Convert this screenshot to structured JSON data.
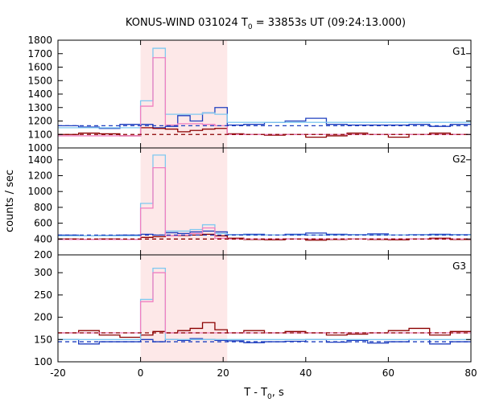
{
  "figure": {
    "title_main": "KONUS-WIND 031024 T",
    "title_sub": "0",
    "title_rest": " = 33853s UT (09:24:13.000)",
    "xlabel_main": "T - T",
    "xlabel_sub": "0",
    "xlabel_rest": ", s",
    "ylabel": "counts / sec"
  },
  "chart_data": [
    {
      "type": "line",
      "panel": "G1",
      "title": "G1",
      "xlim": [
        -20,
        80
      ],
      "ylim": [
        1000,
        1800
      ],
      "xticks": [
        -20,
        0,
        20,
        40,
        60,
        80
      ],
      "yticks": [
        1000,
        1100,
        1200,
        1300,
        1400,
        1500,
        1600,
        1700,
        1800
      ],
      "highlight_interval": [
        0,
        21
      ],
      "highlight_color": "#fde8e8",
      "series": [
        {
          "color": "#1f3fbf",
          "style": "step",
          "x": [
            -20,
            -15,
            -10,
            -5,
            0,
            3,
            6,
            9,
            12,
            15,
            18,
            21,
            25,
            30,
            35,
            40,
            45,
            50,
            55,
            60,
            65,
            70,
            75,
            80
          ],
          "values": [
            1165,
            1155,
            1145,
            1175,
            1175,
            1150,
            1160,
            1240,
            1200,
            1260,
            1300,
            1170,
            1175,
            1190,
            1200,
            1220,
            1175,
            1170,
            1170,
            1170,
            1175,
            1160,
            1175,
            1175
          ]
        },
        {
          "color": "#8b0000",
          "style": "step",
          "x": [
            -20,
            -15,
            -10,
            -5,
            0,
            3,
            6,
            9,
            12,
            15,
            18,
            21,
            25,
            30,
            35,
            40,
            45,
            50,
            55,
            60,
            65,
            70,
            75,
            80
          ],
          "values": [
            1100,
            1110,
            1105,
            1090,
            1150,
            1145,
            1140,
            1120,
            1130,
            1140,
            1145,
            1105,
            1100,
            1095,
            1100,
            1080,
            1090,
            1110,
            1100,
            1080,
            1100,
            1110,
            1100,
            1100
          ]
        },
        {
          "color": "#7fc8f0",
          "style": "step",
          "x": [
            -20,
            -15,
            -10,
            -5,
            0,
            3,
            6,
            9,
            12,
            15,
            18,
            21,
            80
          ],
          "values": [
            1150,
            1150,
            1150,
            1150,
            1350,
            1740,
            1250,
            1250,
            1250,
            1260,
            1250,
            1190,
            1190
          ]
        },
        {
          "color": "#f07fc0",
          "style": "step",
          "x": [
            -20,
            -15,
            -10,
            -5,
            0,
            3,
            6,
            9,
            12,
            15,
            18,
            21,
            80
          ],
          "values": [
            1090,
            1090,
            1090,
            1090,
            1310,
            1670,
            1170,
            1180,
            1180,
            1175,
            1165,
            1100,
            1100
          ]
        },
        {
          "color": "#1f3fbf",
          "style": "dashed",
          "value": 1165
        },
        {
          "color": "#8b0000",
          "style": "dashed",
          "value": 1100
        }
      ]
    },
    {
      "type": "line",
      "panel": "G2",
      "title": "G2",
      "xlim": [
        -20,
        80
      ],
      "ylim": [
        200,
        1550
      ],
      "xticks": [
        -20,
        0,
        20,
        40,
        60,
        80
      ],
      "yticks": [
        200,
        400,
        600,
        800,
        1000,
        1200,
        1400
      ],
      "highlight_interval": [
        0,
        21
      ],
      "highlight_color": "#fde8e8",
      "series": [
        {
          "color": "#1f3fbf",
          "style": "step",
          "x": [
            -20,
            -15,
            -10,
            -5,
            0,
            3,
            6,
            9,
            12,
            15,
            18,
            21,
            25,
            30,
            35,
            40,
            45,
            50,
            55,
            60,
            65,
            70,
            75,
            80
          ],
          "values": [
            450,
            440,
            445,
            450,
            460,
            450,
            480,
            470,
            490,
            500,
            490,
            455,
            460,
            450,
            460,
            475,
            460,
            455,
            465,
            450,
            455,
            460,
            455,
            455
          ]
        },
        {
          "color": "#8b0000",
          "style": "step",
          "x": [
            -20,
            -15,
            -10,
            -5,
            0,
            3,
            6,
            9,
            12,
            15,
            18,
            21,
            25,
            30,
            35,
            40,
            45,
            50,
            55,
            60,
            65,
            70,
            75,
            80
          ],
          "values": [
            400,
            395,
            400,
            395,
            420,
            430,
            440,
            445,
            450,
            460,
            440,
            410,
            395,
            390,
            400,
            385,
            395,
            400,
            395,
            390,
            400,
            410,
            395,
            395
          ]
        },
        {
          "color": "#7fc8f0",
          "style": "step",
          "x": [
            -20,
            -15,
            -10,
            -5,
            0,
            3,
            6,
            9,
            12,
            15,
            18,
            21,
            80
          ],
          "values": [
            440,
            440,
            440,
            440,
            850,
            1460,
            500,
            500,
            520,
            580,
            470,
            450,
            450
          ]
        },
        {
          "color": "#f07fc0",
          "style": "step",
          "x": [
            -20,
            -15,
            -10,
            -5,
            0,
            3,
            6,
            9,
            12,
            15,
            18,
            21,
            80
          ],
          "values": [
            395,
            395,
            395,
            395,
            790,
            1300,
            440,
            450,
            470,
            540,
            410,
            400,
            400
          ]
        },
        {
          "color": "#1f3fbf",
          "style": "dashed",
          "value": 450
        },
        {
          "color": "#8b0000",
          "style": "dashed",
          "value": 400
        }
      ]
    },
    {
      "type": "line",
      "panel": "G3",
      "title": "G3",
      "xlim": [
        -20,
        80
      ],
      "ylim": [
        100,
        340
      ],
      "xticks": [
        -20,
        0,
        20,
        40,
        60,
        80
      ],
      "yticks": [
        100,
        150,
        200,
        250,
        300
      ],
      "highlight_interval": [
        0,
        21
      ],
      "highlight_color": "#fde8e8",
      "series": [
        {
          "color": "#1f3fbf",
          "style": "step",
          "x": [
            -20,
            -15,
            -10,
            -5,
            0,
            3,
            6,
            9,
            12,
            15,
            18,
            21,
            25,
            30,
            35,
            40,
            45,
            50,
            55,
            60,
            65,
            70,
            75,
            80
          ],
          "values": [
            150,
            140,
            145,
            145,
            150,
            145,
            150,
            148,
            152,
            150,
            148,
            147,
            143,
            145,
            146,
            150,
            144,
            148,
            142,
            145,
            150,
            140,
            145,
            145
          ]
        },
        {
          "color": "#8b0000",
          "style": "step",
          "x": [
            -20,
            -15,
            -10,
            -5,
            0,
            3,
            6,
            9,
            12,
            15,
            18,
            21,
            25,
            30,
            35,
            40,
            45,
            50,
            55,
            60,
            65,
            70,
            75,
            80
          ],
          "values": [
            165,
            170,
            160,
            155,
            160,
            168,
            165,
            170,
            175,
            188,
            172,
            165,
            170,
            165,
            168,
            165,
            160,
            162,
            165,
            170,
            175,
            160,
            168,
            168
          ]
        },
        {
          "color": "#7fc8f0",
          "style": "step",
          "x": [
            -20,
            -15,
            -10,
            -5,
            0,
            3,
            6,
            9,
            12,
            15,
            18,
            21,
            80
          ],
          "values": [
            150,
            150,
            150,
            150,
            240,
            310,
            150,
            150,
            150,
            150,
            150,
            150,
            150
          ]
        },
        {
          "color": "#f07fc0",
          "style": "step",
          "x": [
            -20,
            -15,
            -10,
            -5,
            0,
            3,
            6,
            9,
            12,
            15,
            18,
            21,
            80
          ],
          "values": [
            165,
            165,
            165,
            165,
            235,
            300,
            165,
            165,
            165,
            165,
            165,
            165,
            165
          ]
        },
        {
          "color": "#1f3fbf",
          "style": "dashed",
          "value": 145
        },
        {
          "color": "#8b0000",
          "style": "dashed",
          "value": 165
        }
      ]
    }
  ]
}
